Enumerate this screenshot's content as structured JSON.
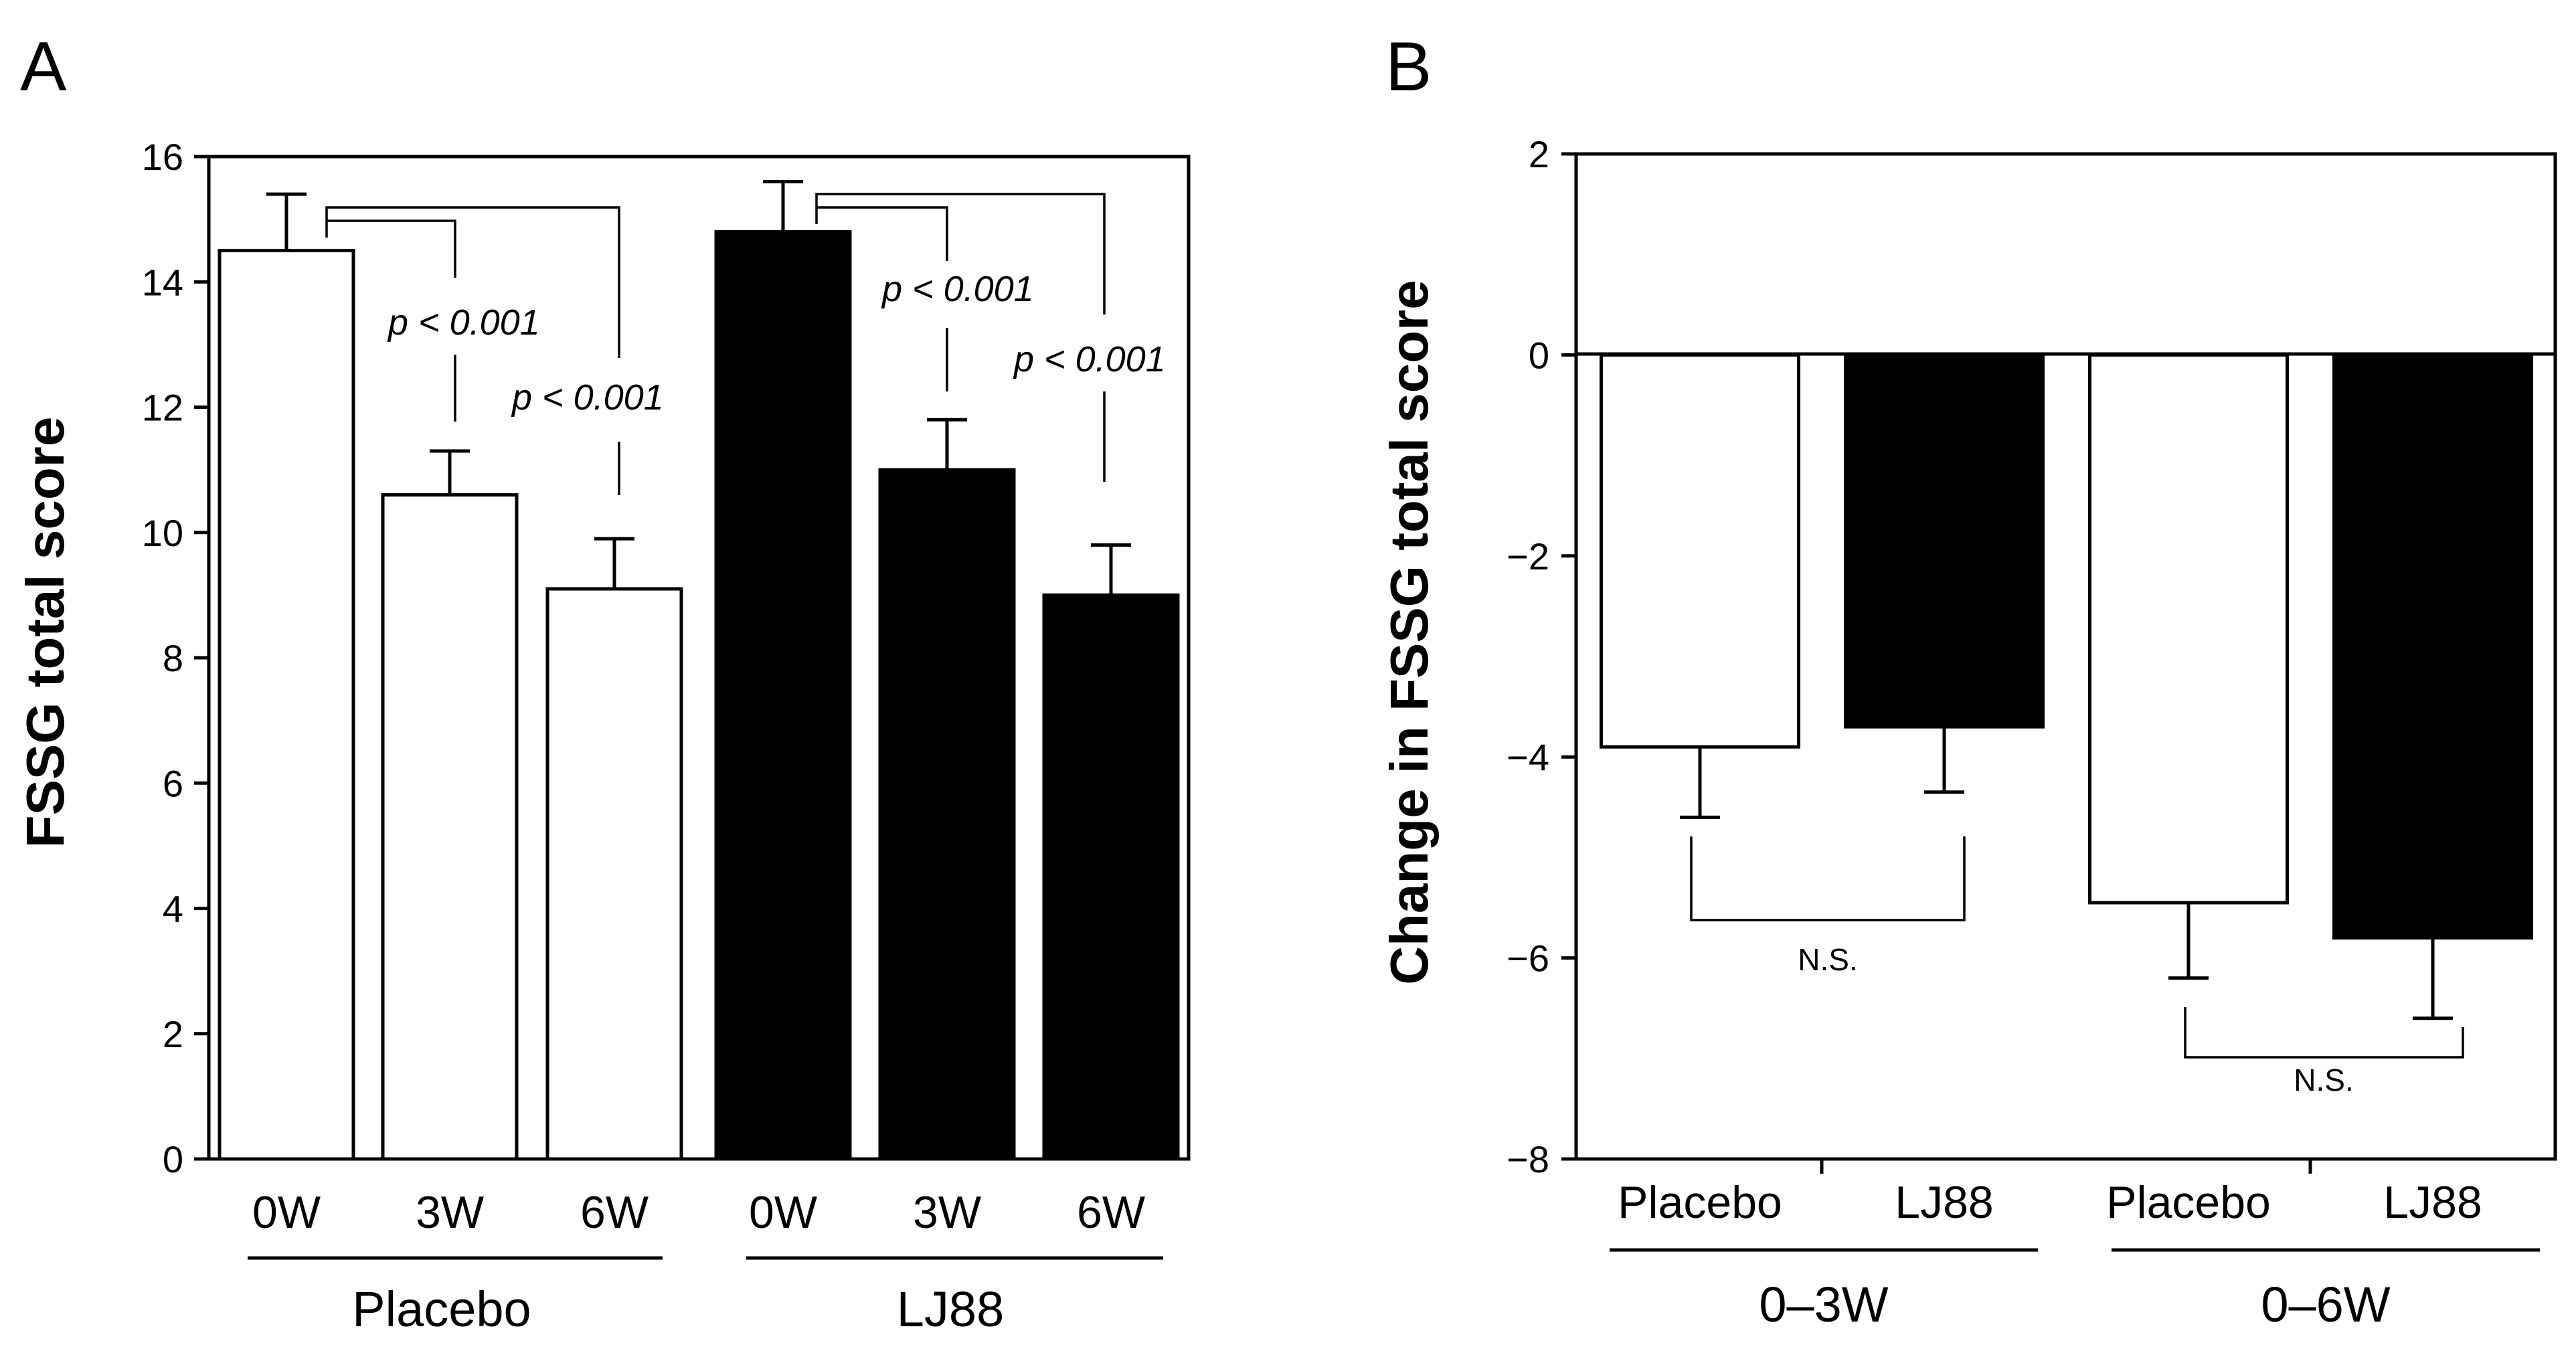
{
  "panels": {
    "A": {
      "label": "A"
    },
    "B": {
      "label": "B"
    }
  },
  "chart_data": [
    {
      "id": "A",
      "type": "bar",
      "ylabel": "FSSG total score",
      "ylim": [
        0,
        16
      ],
      "yticks": [
        0,
        2,
        4,
        6,
        8,
        10,
        12,
        14,
        16
      ],
      "categories": [
        "0W",
        "3W",
        "6W",
        "0W",
        "3W",
        "6W"
      ],
      "groups": [
        {
          "name": "Placebo",
          "color": "#ffffff",
          "values": [
            14.5,
            10.6,
            9.1
          ],
          "errors": [
            0.9,
            0.7,
            0.8
          ]
        },
        {
          "name": "LJ88",
          "color": "#000000",
          "values": [
            14.8,
            11.0,
            9.0
          ],
          "errors": [
            0.8,
            0.8,
            0.8
          ]
        }
      ],
      "annotations": [
        "p < 0.001",
        "p < 0.001",
        "p < 0.001",
        "p < 0.001"
      ]
    },
    {
      "id": "B",
      "type": "bar",
      "ylabel": "Change in FSSG total score",
      "ylim": [
        -8,
        2
      ],
      "yticks": [
        -8,
        -6,
        -4,
        -2,
        0,
        2
      ],
      "categories": [
        "Placebo",
        "LJ88",
        "Placebo",
        "LJ88"
      ],
      "groups": [
        {
          "name": "0–3W",
          "values": [
            -3.9,
            -3.7
          ],
          "errors": [
            0.7,
            0.65
          ]
        },
        {
          "name": "0–6W",
          "values": [
            -5.45,
            -5.8
          ],
          "errors": [
            0.75,
            0.8
          ]
        }
      ],
      "colors": [
        "#ffffff",
        "#000000"
      ],
      "annotations": [
        "N.S.",
        "N.S."
      ]
    }
  ]
}
